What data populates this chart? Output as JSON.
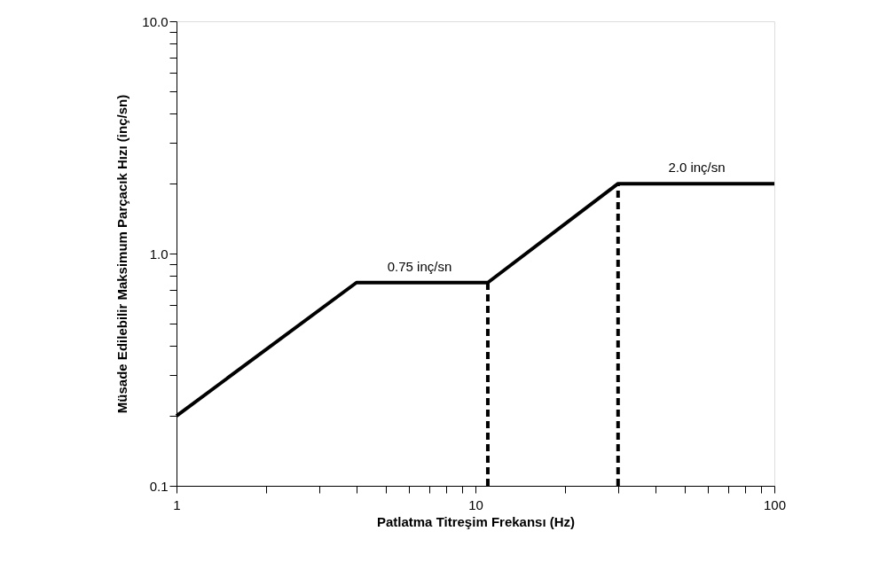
{
  "chart_data": {
    "type": "line",
    "xlabel": "Patlatma Titreşim Frekansı (Hz)",
    "ylabel": "Müsade Edilebilir Maksimum Parçacık Hızı (inç/sn)",
    "log": "xy",
    "grid": false,
    "marker": "none",
    "xlim": [
      1,
      100
    ],
    "ylim": [
      0.1,
      10
    ],
    "xticks": [
      1,
      {
        "value": 2,
        "label": null
      },
      {
        "value": 3,
        "label": null
      },
      {
        "value": 4,
        "label": null
      },
      {
        "value": 5,
        "label": null
      },
      {
        "value": 6,
        "label": null
      },
      {
        "value": 7,
        "label": null
      },
      {
        "value": 8,
        "label": null
      },
      {
        "value": 9,
        "label": null
      },
      10,
      {
        "value": 20,
        "label": null
      },
      {
        "value": 30,
        "label": null
      },
      {
        "value": 40,
        "label": null
      },
      {
        "value": 50,
        "label": null
      },
      {
        "value": 60,
        "label": null
      },
      {
        "value": 70,
        "label": null
      },
      {
        "value": 80,
        "label": null
      },
      {
        "value": 90,
        "label": null
      },
      100
    ],
    "yticks": [
      0.1,
      {
        "value": 0.2,
        "label": null
      },
      {
        "value": 0.3,
        "label": null
      },
      {
        "value": 0.4,
        "label": null
      },
      {
        "value": 0.5,
        "label": null
      },
      {
        "value": 0.6,
        "label": null
      },
      {
        "value": 0.7,
        "label": null
      },
      {
        "value": 0.8,
        "label": null
      },
      {
        "value": 0.9,
        "label": null
      },
      {
        "value": 1,
        "label": "1.0"
      },
      {
        "value": 2,
        "label": null
      },
      {
        "value": 3,
        "label": null
      },
      {
        "value": 4,
        "label": null
      },
      {
        "value": 5,
        "label": null
      },
      {
        "value": 6,
        "label": null
      },
      {
        "value": 7,
        "label": null
      },
      {
        "value": 8,
        "label": null
      },
      {
        "value": 9,
        "label": null
      },
      {
        "value": 10,
        "label": "10.0"
      }
    ],
    "series": [
      {
        "color": "#000000",
        "line_style": "solid",
        "x": [
          1,
          4,
          11,
          30,
          100
        ],
        "values": [
          0.2,
          0.75,
          0.75,
          2.0,
          2.0
        ]
      },
      {
        "color": "#000000",
        "line_style": "dashed",
        "x": [
          11,
          11
        ],
        "values": [
          0.1,
          0.75
        ]
      },
      {
        "color": "#000000",
        "line_style": "dashed",
        "x": [
          30,
          30
        ],
        "values": [
          0.1,
          2.0
        ]
      }
    ],
    "annotations": [
      {
        "text": "0.75 inç/sn",
        "x": 6.5,
        "y": 0.75
      },
      {
        "text": "2.0 inç/sn",
        "x": 55,
        "y": 2.0
      }
    ]
  }
}
